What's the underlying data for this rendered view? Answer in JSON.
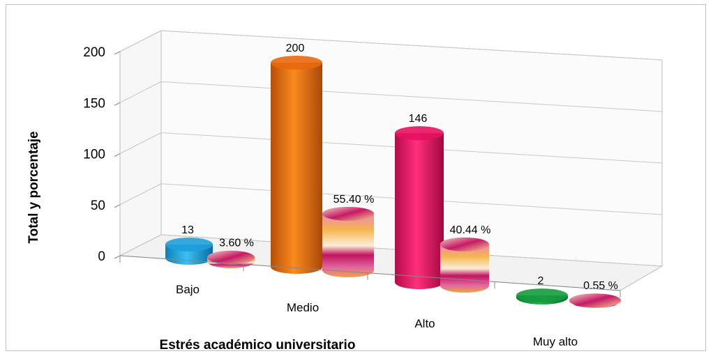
{
  "chart_data": {
    "type": "bar",
    "title": "",
    "xlabel": "Estrés académico universitario",
    "ylabel": "Total y porcentaje",
    "ylim": [
      0,
      200
    ],
    "yticks": [
      "0",
      "50",
      "100",
      "150",
      "200"
    ],
    "categories": [
      "Bajo",
      "Medio",
      "Alto",
      "Muy alto"
    ],
    "series": [
      {
        "values": [
          13,
          200,
          146,
          2
        ],
        "labels": [
          "13",
          "200",
          "146",
          "2"
        ],
        "colors": [
          "#1f9fd9",
          "#e8680b",
          "#e6115f",
          "#159a3e"
        ]
      },
      {
        "values": [
          3.6,
          55.4,
          40.44,
          0.55
        ],
        "labels": [
          "3.60 %",
          "55.40 %",
          "40.44 %",
          "0.55 %"
        ],
        "colors": [
          "#e0a3a8",
          "#f0c37a",
          "#f2d9b0",
          "#d9b6c8"
        ]
      }
    ],
    "grid": true,
    "legend": "none",
    "style": "3d-cylinder"
  }
}
